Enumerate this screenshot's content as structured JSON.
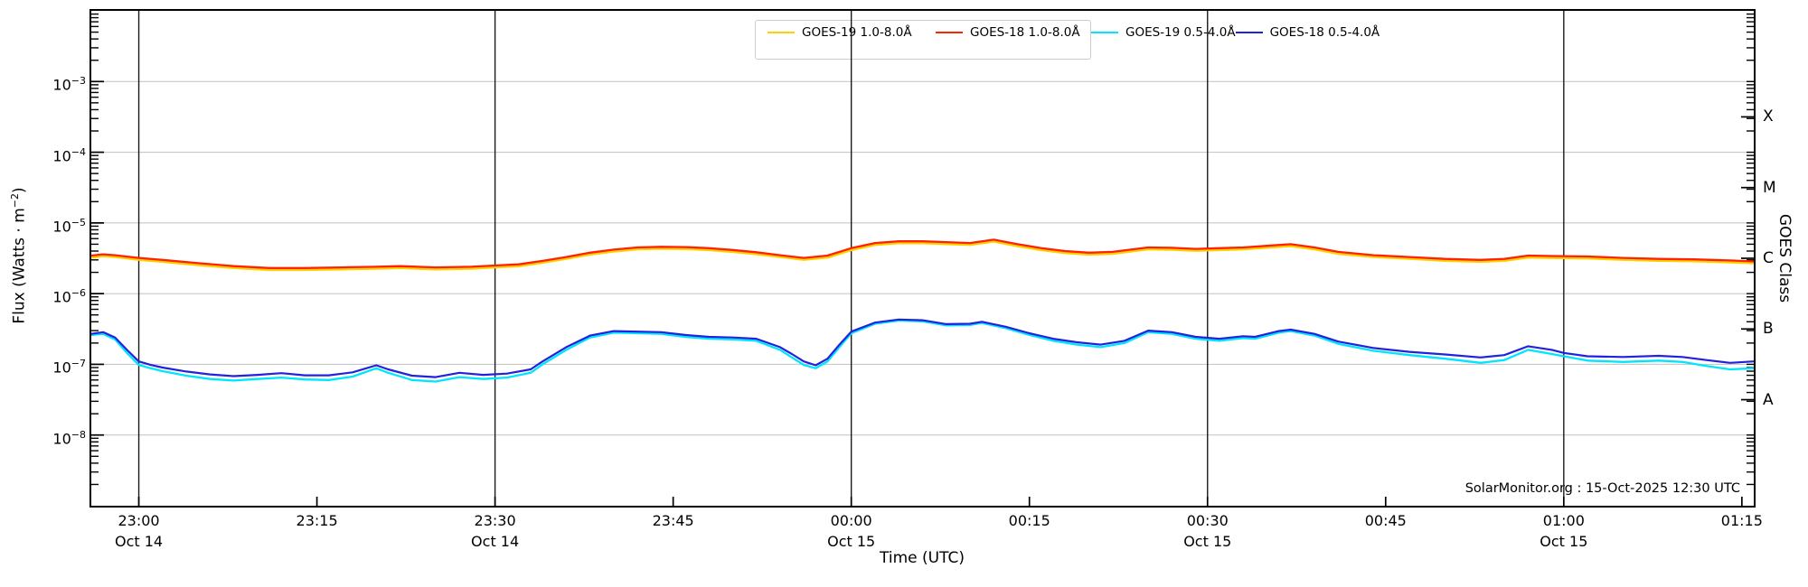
{
  "chart_data": {
    "type": "line",
    "title": "",
    "xlabel": "Time (UTC)",
    "ylabel_parts": [
      "Flux (Watts · m",
      "−2",
      ")"
    ],
    "ylabel_right": "GOES Class",
    "annotation": "SolarMonitor.org : 15-Oct-2025 12:30 UTC",
    "axes": {
      "x_unit": "minutes relative to 23:00 UTC 14-Oct-2025",
      "x_range_minutes": [
        -4,
        136
      ],
      "y_scale": "log",
      "y_range": [
        1e-09,
        0.01
      ],
      "grid_horizontal": "light gray at each decade",
      "grid_vertical": "black lines every 30 minutes"
    },
    "colors": {
      "goes19_long": "#ffd000",
      "goes18_long": "#ff2200",
      "goes19_short": "#00e5ff",
      "goes18_short": "#2222dd",
      "gridline": "#c8c8c8",
      "timeline": "#1a1a1a"
    },
    "y_ticks": [
      {
        "exp": -3,
        "label_base": "10",
        "label_exp": "−3"
      },
      {
        "exp": -4,
        "label_base": "10",
        "label_exp": "−4"
      },
      {
        "exp": -5,
        "label_base": "10",
        "label_exp": "−5"
      },
      {
        "exp": -6,
        "label_base": "10",
        "label_exp": "−6"
      },
      {
        "exp": -7,
        "label_base": "10",
        "label_exp": "−7"
      },
      {
        "exp": -8,
        "label_base": "10",
        "label_exp": "−8"
      }
    ],
    "class_labels": [
      {
        "label": "X",
        "exp": -3.5
      },
      {
        "label": "M",
        "exp": -4.5
      },
      {
        "label": "C",
        "exp": -5.5
      },
      {
        "label": "B",
        "exp": -6.5
      },
      {
        "label": "A",
        "exp": -7.5
      }
    ],
    "x_ticks": [
      {
        "t": 0,
        "time": "23:00",
        "date": "Oct 14"
      },
      {
        "t": 15,
        "time": "23:15",
        "date": ""
      },
      {
        "t": 30,
        "time": "23:30",
        "date": "Oct 14"
      },
      {
        "t": 45,
        "time": "23:45",
        "date": ""
      },
      {
        "t": 60,
        "time": "00:00",
        "date": "Oct 15"
      },
      {
        "t": 75,
        "time": "00:15",
        "date": ""
      },
      {
        "t": 90,
        "time": "00:30",
        "date": "Oct 15"
      },
      {
        "t": 105,
        "time": "00:45",
        "date": ""
      },
      {
        "t": 120,
        "time": "01:00",
        "date": "Oct 15"
      },
      {
        "t": 135,
        "time": "01:15",
        "date": ""
      }
    ],
    "x_gridline_minutes": [
      0,
      30,
      60,
      90,
      120
    ],
    "series": [
      {
        "name": "GOES-19 1.0-8.0Å",
        "color": "#ffd000",
        "width": 3.2,
        "t": [
          -4,
          -3,
          -2,
          0,
          2,
          5,
          8,
          11,
          14,
          17,
          20,
          22,
          25,
          28,
          30,
          32,
          34,
          36,
          38,
          40,
          42,
          44,
          46,
          48,
          50,
          52,
          54,
          56,
          58,
          60,
          62,
          64,
          66,
          68,
          70,
          72,
          74,
          76,
          78,
          80,
          82,
          85,
          87,
          89,
          91,
          93,
          95,
          97,
          99,
          101,
          104,
          107,
          110,
          113,
          115,
          117,
          119,
          122,
          125,
          128,
          131,
          134,
          136
        ],
        "v": [
          3.28e-06,
          3.42e-06,
          3.33e-06,
          3.04e-06,
          2.85e-06,
          2.57e-06,
          2.33e-06,
          2.19e-06,
          2.19e-06,
          2.23e-06,
          2.28e-06,
          2.33e-06,
          2.23e-06,
          2.28e-06,
          2.38e-06,
          2.47e-06,
          2.76e-06,
          3.14e-06,
          3.61e-06,
          3.99e-06,
          4.28e-06,
          4.37e-06,
          4.32e-06,
          4.18e-06,
          3.94e-06,
          3.66e-06,
          3.33e-06,
          3.04e-06,
          3.28e-06,
          4.18e-06,
          4.94e-06,
          5.23e-06,
          5.23e-06,
          5.08e-06,
          4.94e-06,
          5.51e-06,
          4.75e-06,
          4.18e-06,
          3.8e-06,
          3.61e-06,
          3.71e-06,
          4.28e-06,
          4.23e-06,
          4.09e-06,
          4.18e-06,
          4.28e-06,
          4.51e-06,
          4.75e-06,
          4.28e-06,
          3.71e-06,
          3.33e-06,
          3.14e-06,
          2.95e-06,
          2.85e-06,
          2.95e-06,
          3.28e-06,
          3.23e-06,
          3.18e-06,
          3.04e-06,
          2.95e-06,
          2.9e-06,
          2.8e-06,
          2.71e-06
        ]
      },
      {
        "name": "GOES-18 1.0-8.0Å",
        "color": "#ff2200",
        "width": 2.3,
        "t": [
          -4,
          -3,
          -2,
          0,
          2,
          5,
          8,
          11,
          14,
          17,
          20,
          22,
          25,
          28,
          30,
          32,
          34,
          36,
          38,
          40,
          42,
          44,
          46,
          48,
          50,
          52,
          54,
          56,
          58,
          60,
          62,
          64,
          66,
          68,
          70,
          72,
          74,
          76,
          78,
          80,
          82,
          85,
          87,
          89,
          91,
          93,
          95,
          97,
          99,
          101,
          104,
          107,
          110,
          113,
          115,
          117,
          119,
          122,
          125,
          128,
          131,
          134,
          136
        ],
        "v": [
          3.45e-06,
          3.6e-06,
          3.5e-06,
          3.2e-06,
          3e-06,
          2.7e-06,
          2.45e-06,
          2.3e-06,
          2.3e-06,
          2.35e-06,
          2.4e-06,
          2.45e-06,
          2.35e-06,
          2.4e-06,
          2.5e-06,
          2.6e-06,
          2.9e-06,
          3.3e-06,
          3.8e-06,
          4.2e-06,
          4.5e-06,
          4.6e-06,
          4.55e-06,
          4.4e-06,
          4.15e-06,
          3.85e-06,
          3.5e-06,
          3.2e-06,
          3.45e-06,
          4.4e-06,
          5.2e-06,
          5.5e-06,
          5.5e-06,
          5.35e-06,
          5.2e-06,
          5.8e-06,
          5e-06,
          4.4e-06,
          4e-06,
          3.8e-06,
          3.9e-06,
          4.5e-06,
          4.45e-06,
          4.3e-06,
          4.4e-06,
          4.5e-06,
          4.75e-06,
          5e-06,
          4.5e-06,
          3.9e-06,
          3.5e-06,
          3.3e-06,
          3.1e-06,
          3e-06,
          3.1e-06,
          3.45e-06,
          3.4e-06,
          3.35e-06,
          3.2e-06,
          3.1e-06,
          3.05e-06,
          2.95e-06,
          2.85e-06
        ]
      },
      {
        "name": "GOES-19 0.5-4.0Å",
        "color": "#00e5ff",
        "width": 2.3,
        "t": [
          -4,
          -3,
          -2,
          -1,
          0,
          1,
          2,
          4,
          6,
          8,
          10,
          12,
          14,
          16,
          18,
          20,
          21,
          23,
          25,
          27,
          29,
          31,
          33,
          34,
          36,
          38,
          40,
          42,
          44,
          46,
          48,
          50,
          52,
          54,
          55,
          56,
          57,
          58,
          59,
          60,
          62,
          64,
          66,
          68,
          70,
          71,
          73,
          75,
          77,
          79,
          81,
          83,
          85,
          87,
          89,
          91,
          93,
          94,
          96,
          97,
          99,
          101,
          104,
          107,
          110,
          113,
          115,
          117,
          119,
          120,
          122,
          125,
          128,
          130,
          132,
          134,
          136
        ],
        "v": [
          2.6e-07,
          2.7e-07,
          2.25e-07,
          1.45e-07,
          9.8e-08,
          8.8e-08,
          8e-08,
          6.9e-08,
          6.2e-08,
          5.9e-08,
          6.2e-08,
          6.5e-08,
          6.1e-08,
          6e-08,
          6.7e-08,
          8.8e-08,
          7.6e-08,
          6e-08,
          5.7e-08,
          6.6e-08,
          6.2e-08,
          6.5e-08,
          7.6e-08,
          1e-07,
          1.6e-07,
          2.4e-07,
          2.8e-07,
          2.75e-07,
          2.7e-07,
          2.45e-07,
          2.3e-07,
          2.25e-07,
          2.15e-07,
          1.6e-07,
          1.25e-07,
          9.8e-08,
          8.8e-08,
          1.1e-07,
          1.75e-07,
          2.75e-07,
          3.75e-07,
          4.15e-07,
          4.05e-07,
          3.55e-07,
          3.6e-07,
          3.85e-07,
          3.25e-07,
          2.6e-07,
          2.15e-07,
          1.9e-07,
          1.75e-07,
          2e-07,
          2.85e-07,
          2.7e-07,
          2.3e-07,
          2.15e-07,
          2.35e-07,
          2.3e-07,
          2.8e-07,
          2.95e-07,
          2.55e-07,
          1.95e-07,
          1.55e-07,
          1.35e-07,
          1.2e-07,
          1.05e-07,
          1.15e-07,
          1.6e-07,
          1.4e-07,
          1.3e-07,
          1.13e-07,
          1.08e-07,
          1.13e-07,
          1.08e-07,
          9.5e-08,
          8.5e-08,
          8.8e-08
        ]
      },
      {
        "name": "GOES-18 0.5-4.0Å",
        "color": "#2222dd",
        "width": 2.2,
        "t": [
          -4,
          -3,
          -2,
          -1,
          0,
          1,
          2,
          4,
          6,
          8,
          10,
          12,
          14,
          16,
          18,
          20,
          21,
          23,
          25,
          27,
          29,
          31,
          33,
          34,
          36,
          38,
          40,
          42,
          44,
          46,
          48,
          50,
          52,
          54,
          55,
          56,
          57,
          58,
          59,
          60,
          62,
          64,
          66,
          68,
          70,
          71,
          73,
          75,
          77,
          79,
          81,
          83,
          85,
          87,
          89,
          91,
          93,
          94,
          96,
          97,
          99,
          101,
          104,
          107,
          110,
          113,
          115,
          117,
          119,
          120,
          122,
          125,
          128,
          130,
          132,
          134,
          136
        ],
        "v": [
          2.7e-07,
          2.85e-07,
          2.4e-07,
          1.6e-07,
          1.1e-07,
          9.8e-08,
          9e-08,
          7.9e-08,
          7.2e-08,
          6.8e-08,
          7.1e-08,
          7.5e-08,
          7e-08,
          7e-08,
          7.7e-08,
          9.7e-08,
          8.5e-08,
          6.9e-08,
          6.6e-08,
          7.6e-08,
          7.1e-08,
          7.4e-08,
          8.5e-08,
          1.1e-07,
          1.75e-07,
          2.55e-07,
          2.95e-07,
          2.9e-07,
          2.85e-07,
          2.6e-07,
          2.45e-07,
          2.4e-07,
          2.3e-07,
          1.75e-07,
          1.4e-07,
          1.1e-07,
          9.7e-08,
          1.2e-07,
          1.9e-07,
          2.9e-07,
          3.9e-07,
          4.3e-07,
          4.2e-07,
          3.7e-07,
          3.75e-07,
          4e-07,
          3.4e-07,
          2.75e-07,
          2.3e-07,
          2.05e-07,
          1.9e-07,
          2.15e-07,
          3e-07,
          2.85e-07,
          2.45e-07,
          2.3e-07,
          2.5e-07,
          2.45e-07,
          2.95e-07,
          3.1e-07,
          2.7e-07,
          2.1e-07,
          1.7e-07,
          1.5e-07,
          1.38e-07,
          1.25e-07,
          1.35e-07,
          1.8e-07,
          1.6e-07,
          1.45e-07,
          1.3e-07,
          1.27e-07,
          1.32e-07,
          1.27e-07,
          1.15e-07,
          1.05e-07,
          1.1e-07
        ]
      }
    ],
    "legend": {
      "position": "upper center",
      "columns": 2
    }
  }
}
